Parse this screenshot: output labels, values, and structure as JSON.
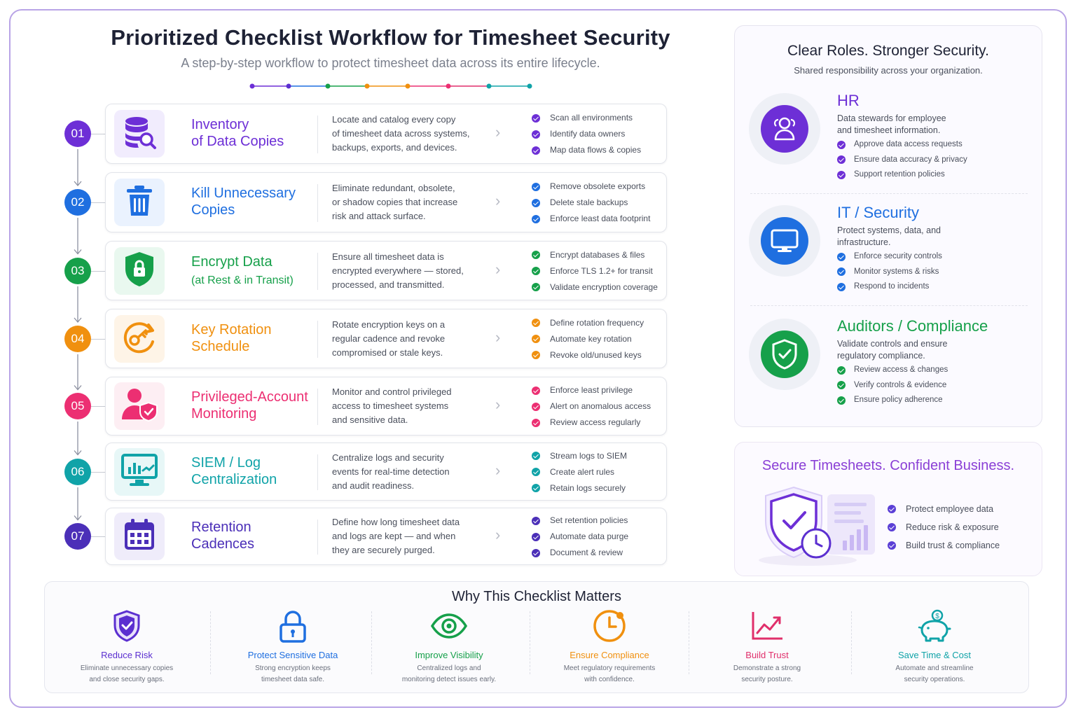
{
  "header": {
    "title": "Prioritized Checklist Workflow for Timesheet Security",
    "subtitle": "A step-by-step workflow to protect timesheet data across its entire lifecycle."
  },
  "steps": [
    {
      "number": "01",
      "icon": "database-search-icon",
      "color": "#6d2fd6",
      "tint": "#f1ecfd",
      "title_line1": "Inventory",
      "title_line2": "of Data Copies",
      "title_sub": "",
      "desc_lines": [
        "Locate and catalog every copy",
        "of timesheet data across systems,",
        "backups, exports, and devices."
      ],
      "checks": [
        "Scan all environments",
        "Identify data owners",
        "Map data flows & copies"
      ]
    },
    {
      "number": "02",
      "icon": "trash-icon",
      "color": "#1f6fe0",
      "tint": "#eaf2fe",
      "title_line1": "Kill Unnecessary",
      "title_line2": "Copies",
      "title_sub": "",
      "desc_lines": [
        "Eliminate redundant, obsolete,",
        "or shadow copies that increase",
        "risk and attack surface."
      ],
      "checks": [
        "Remove obsolete exports",
        "Delete stale backups",
        "Enforce least data footprint"
      ]
    },
    {
      "number": "03",
      "icon": "shield-lock-icon",
      "color": "#16a04a",
      "tint": "#e9f8ef",
      "title_line1": "Encrypt Data",
      "title_line2": "",
      "title_sub": "(at Rest & in Transit)",
      "desc_lines": [
        "Ensure all timesheet data is",
        "encrypted everywhere — stored,",
        "processed, and transmitted."
      ],
      "checks": [
        "Encrypt databases & files",
        "Enforce TLS 1.2+ for transit",
        "Validate encryption coverage"
      ]
    },
    {
      "number": "04",
      "icon": "key-rotate-icon",
      "color": "#f0900f",
      "tint": "#fef4e7",
      "title_line1": "Key Rotation",
      "title_line2": "Schedule",
      "title_sub": "",
      "desc_lines": [
        "Rotate encryption keys on a",
        "regular cadence and revoke",
        "compromised or stale keys."
      ],
      "checks": [
        "Define rotation frequency",
        "Automate key rotation",
        "Revoke old/unused keys"
      ]
    },
    {
      "number": "05",
      "icon": "user-shield-icon",
      "color": "#ec2f72",
      "tint": "#fdeef3",
      "title_line1": "Privileged-Account",
      "title_line2": "Monitoring",
      "title_sub": "",
      "desc_lines": [
        "Monitor and control privileged",
        "access to timesheet systems",
        "and sensitive data."
      ],
      "checks": [
        "Enforce least privilege",
        "Alert on anomalous access",
        "Review access regularly"
      ]
    },
    {
      "number": "06",
      "icon": "monitor-chart-icon",
      "color": "#10a3a8",
      "tint": "#e7f7f7",
      "title_line1": "SIEM / Log",
      "title_line2": "Centralization",
      "title_sub": "",
      "desc_lines": [
        "Centralize logs and security",
        "events for real-time detection",
        "and audit readiness."
      ],
      "checks": [
        "Stream logs to SIEM",
        "Create alert rules",
        "Retain logs securely"
      ]
    },
    {
      "number": "07",
      "icon": "calendar-icon",
      "color": "#4b2fb8",
      "tint": "#efecfa",
      "title_line1": "Retention",
      "title_line2": "Cadences",
      "title_sub": "",
      "desc_lines": [
        "Define how long timesheet data",
        "and logs are kept — and when",
        "they are securely purged."
      ],
      "checks": [
        "Set retention policies",
        "Automate data purge",
        "Document & review"
      ]
    }
  ],
  "roles": {
    "title": "Clear Roles. Stronger Security.",
    "subtitle": "Shared responsibility across your organization.",
    "items": [
      {
        "name": "HR",
        "icon": "users-icon",
        "color": "#6d2fd6",
        "desc_lines": [
          "Data stewards for employee",
          "and timesheet information."
        ],
        "checks": [
          "Approve data access requests",
          "Ensure data accuracy & privacy",
          "Support retention policies"
        ]
      },
      {
        "name": "IT / Security",
        "icon": "monitor-icon",
        "color": "#1f6fe0",
        "desc_lines": [
          "Protect systems, data, and",
          "infrastructure."
        ],
        "checks": [
          "Enforce security controls",
          "Monitor systems & risks",
          "Respond to incidents"
        ]
      },
      {
        "name": "Auditors / Compliance",
        "icon": "shield-check-icon",
        "color": "#16a04a",
        "desc_lines": [
          "Validate controls and ensure",
          "regulatory compliance."
        ],
        "checks": [
          "Review access & changes",
          "Verify controls & evidence",
          "Ensure policy adherence"
        ]
      }
    ]
  },
  "secure": {
    "title": "Secure Timesheets. Confident Business.",
    "checks": [
      "Protect employee data",
      "Reduce risk & exposure",
      "Build trust & compliance"
    ]
  },
  "why": {
    "title": "Why This Checklist Matters",
    "items": [
      {
        "name": "Reduce Risk",
        "icon": "shield-check-icon",
        "color": "#5b2fd0",
        "desc_lines": [
          "Eliminate unnecessary copies",
          "and close security gaps."
        ]
      },
      {
        "name": "Protect Sensitive Data",
        "icon": "lock-icon",
        "color": "#1f6fe0",
        "desc_lines": [
          "Strong encryption keeps",
          "timesheet data safe."
        ]
      },
      {
        "name": "Improve Visibility",
        "icon": "eye-icon",
        "color": "#16a04a",
        "desc_lines": [
          "Centralized logs and",
          "monitoring detect issues early."
        ]
      },
      {
        "name": "Ensure Compliance",
        "icon": "clock-icon",
        "color": "#f0900f",
        "desc_lines": [
          "Meet regulatory requirements",
          "with confidence."
        ]
      },
      {
        "name": "Build Trust",
        "icon": "chart-up-icon",
        "color": "#e02f6b",
        "desc_lines": [
          "Demonstrate a strong",
          "security posture."
        ]
      },
      {
        "name": "Save Time & Cost",
        "icon": "piggy-bank-icon",
        "color": "#10a3a8",
        "desc_lines": [
          "Automate and streamline",
          "security operations."
        ]
      }
    ]
  }
}
